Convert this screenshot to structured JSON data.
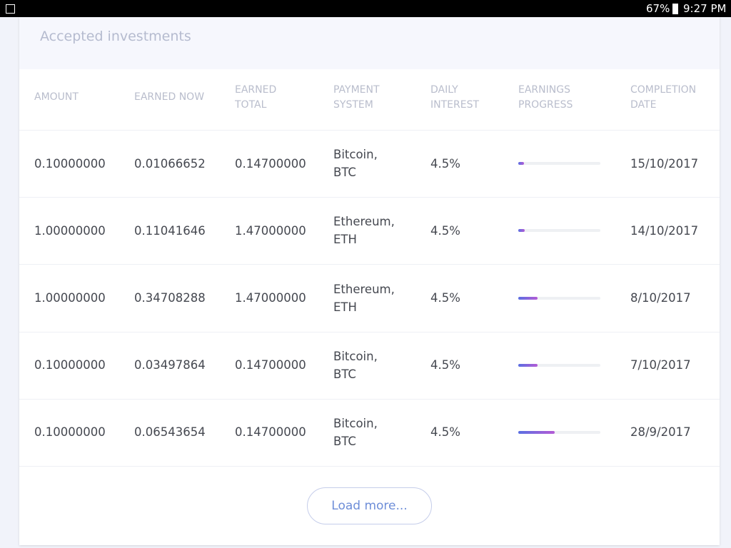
{
  "status_bar": {
    "battery": "67%",
    "time": "9:27 PM"
  },
  "panel": {
    "title": "Accepted investments",
    "headers": [
      [
        "AMOUNT"
      ],
      [
        "EARNED NOW"
      ],
      [
        "EARNED",
        "TOTAL"
      ],
      [
        "PAYMENT",
        "SYSTEM"
      ],
      [
        "DAILY",
        "INTEREST"
      ],
      [
        "EARNINGS",
        "PROGRESS"
      ],
      [
        "COMPLETION",
        "DATE"
      ]
    ],
    "rows": [
      {
        "amount": "0.10000000",
        "earned_now": "0.01066652",
        "earned_total": "0.14700000",
        "payment": [
          "Bitcoin,",
          "BTC"
        ],
        "interest": "4.5%",
        "progress": 7,
        "date": "15/10/2017"
      },
      {
        "amount": "1.00000000",
        "earned_now": "0.11041646",
        "earned_total": "1.47000000",
        "payment": [
          "Ethereum,",
          "ETH"
        ],
        "interest": "4.5%",
        "progress": 7.5,
        "date": "14/10/2017"
      },
      {
        "amount": "1.00000000",
        "earned_now": "0.34708288",
        "earned_total": "1.47000000",
        "payment": [
          "Ethereum,",
          "ETH"
        ],
        "interest": "4.5%",
        "progress": 23.6,
        "date": "8/10/2017"
      },
      {
        "amount": "0.10000000",
        "earned_now": "0.03497864",
        "earned_total": "0.14700000",
        "payment": [
          "Bitcoin,",
          "BTC"
        ],
        "interest": "4.5%",
        "progress": 23.8,
        "date": "7/10/2017"
      },
      {
        "amount": "0.10000000",
        "earned_now": "0.06543654",
        "earned_total": "0.14700000",
        "payment": [
          "Bitcoin,",
          "BTC"
        ],
        "interest": "4.5%",
        "progress": 44.5,
        "date": "28/9/2017"
      }
    ],
    "button": "Load more..."
  }
}
